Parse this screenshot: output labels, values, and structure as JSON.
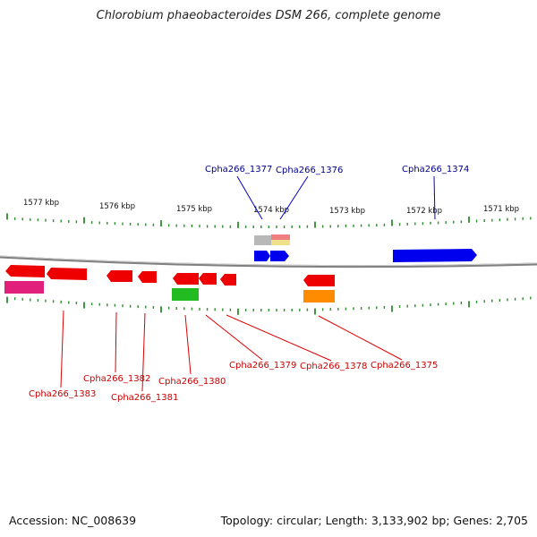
{
  "title": "Chlorobium phaeobacteroides DSM 266, complete genome",
  "footer": {
    "accession": "Accession: NC_008639",
    "info": "Topology: circular; Length: 3,133,902 bp; Genes: 2,705"
  },
  "scale_labels": [
    "1577 kbp",
    "1576 kbp",
    "1575 kbp",
    "1574 kbp",
    "1573 kbp",
    "1572 kbp",
    "1571 kbp"
  ],
  "gene_labels_top": [
    "Cpha266_1377",
    "Cpha266_1376",
    "Cpha266_1374"
  ],
  "gene_labels_bottom": [
    "Cpha266_1383",
    "Cpha266_1382",
    "Cpha266_1381",
    "Cpha266_1380",
    "Cpha266_1379",
    "Cpha266_1378",
    "Cpha266_1375"
  ],
  "colors": {
    "forward": "#0000ee",
    "reverse": "#ee0000",
    "ticks": "#2e8b2e",
    "backbone": "#808080",
    "pink": "#e0207a",
    "green": "#22bb22",
    "orange": "#ff8c00",
    "grey": "#b8b8b8",
    "salmon": "#f08080",
    "yellow": "#f0e08a",
    "label_forward": "#00008b",
    "label_reverse": "#cc0000"
  }
}
